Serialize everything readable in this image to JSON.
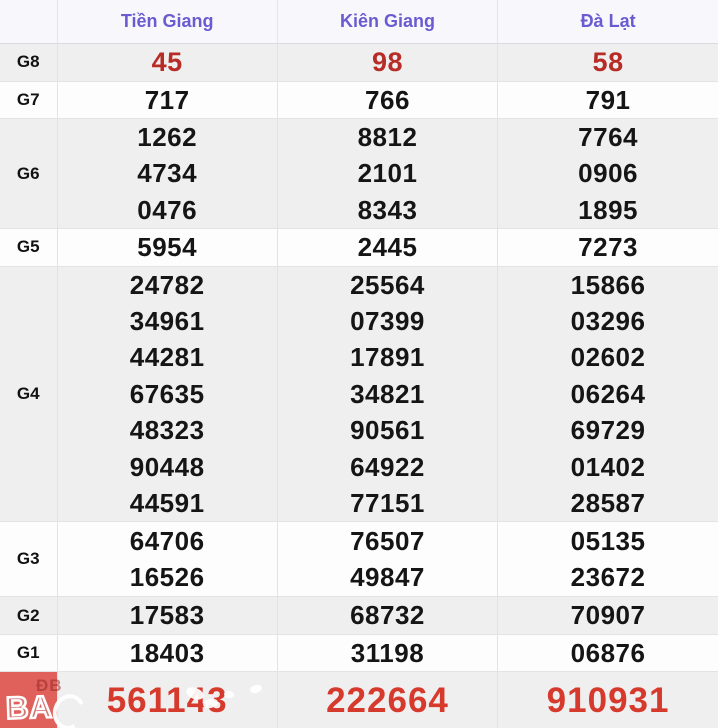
{
  "table": {
    "columns": [
      "Tiền Giang",
      "Kiên Giang",
      "Đà Lạt"
    ],
    "rows": [
      {
        "label": "G8",
        "values": [
          [
            "45"
          ],
          [
            "98"
          ],
          [
            "58"
          ]
        ]
      },
      {
        "label": "G7",
        "values": [
          [
            "717"
          ],
          [
            "766"
          ],
          [
            "791"
          ]
        ]
      },
      {
        "label": "G6",
        "values": [
          [
            "1262",
            "4734",
            "0476"
          ],
          [
            "8812",
            "2101",
            "8343"
          ],
          [
            "7764",
            "0906",
            "1895"
          ]
        ]
      },
      {
        "label": "G5",
        "values": [
          [
            "5954"
          ],
          [
            "2445"
          ],
          [
            "7273"
          ]
        ]
      },
      {
        "label": "G4",
        "values": [
          [
            "24782",
            "34961",
            "44281",
            "67635",
            "48323",
            "90448",
            "44591"
          ],
          [
            "25564",
            "07399",
            "17891",
            "34821",
            "90561",
            "64922",
            "77151"
          ],
          [
            "15866",
            "03296",
            "02602",
            "06264",
            "69729",
            "01402",
            "28587"
          ]
        ]
      },
      {
        "label": "G3",
        "values": [
          [
            "64706",
            "16526"
          ],
          [
            "76507",
            "49847"
          ],
          [
            "05135",
            "23672"
          ]
        ]
      },
      {
        "label": "G2",
        "values": [
          [
            "17583"
          ],
          [
            "68732"
          ],
          [
            "70907"
          ]
        ]
      },
      {
        "label": "G1",
        "values": [
          [
            "18403"
          ],
          [
            "31198"
          ],
          [
            "06876"
          ]
        ]
      },
      {
        "label": "ĐB",
        "values": [
          [
            "561143"
          ],
          [
            "222664"
          ],
          [
            "910931"
          ]
        ]
      }
    ]
  },
  "watermark": {
    "text": "BA",
    "label_overlay": "ĐB"
  },
  "colors": {
    "header_text": "#6a5cd0",
    "header_bg": "#f8f7fc",
    "g8_red": "#b72c26",
    "special_red": "#d63a2d",
    "special_cell_bg": "#e0615c",
    "row_gray": "#f0efef",
    "row_white": "#fdfdfd",
    "number_black": "#151515"
  }
}
